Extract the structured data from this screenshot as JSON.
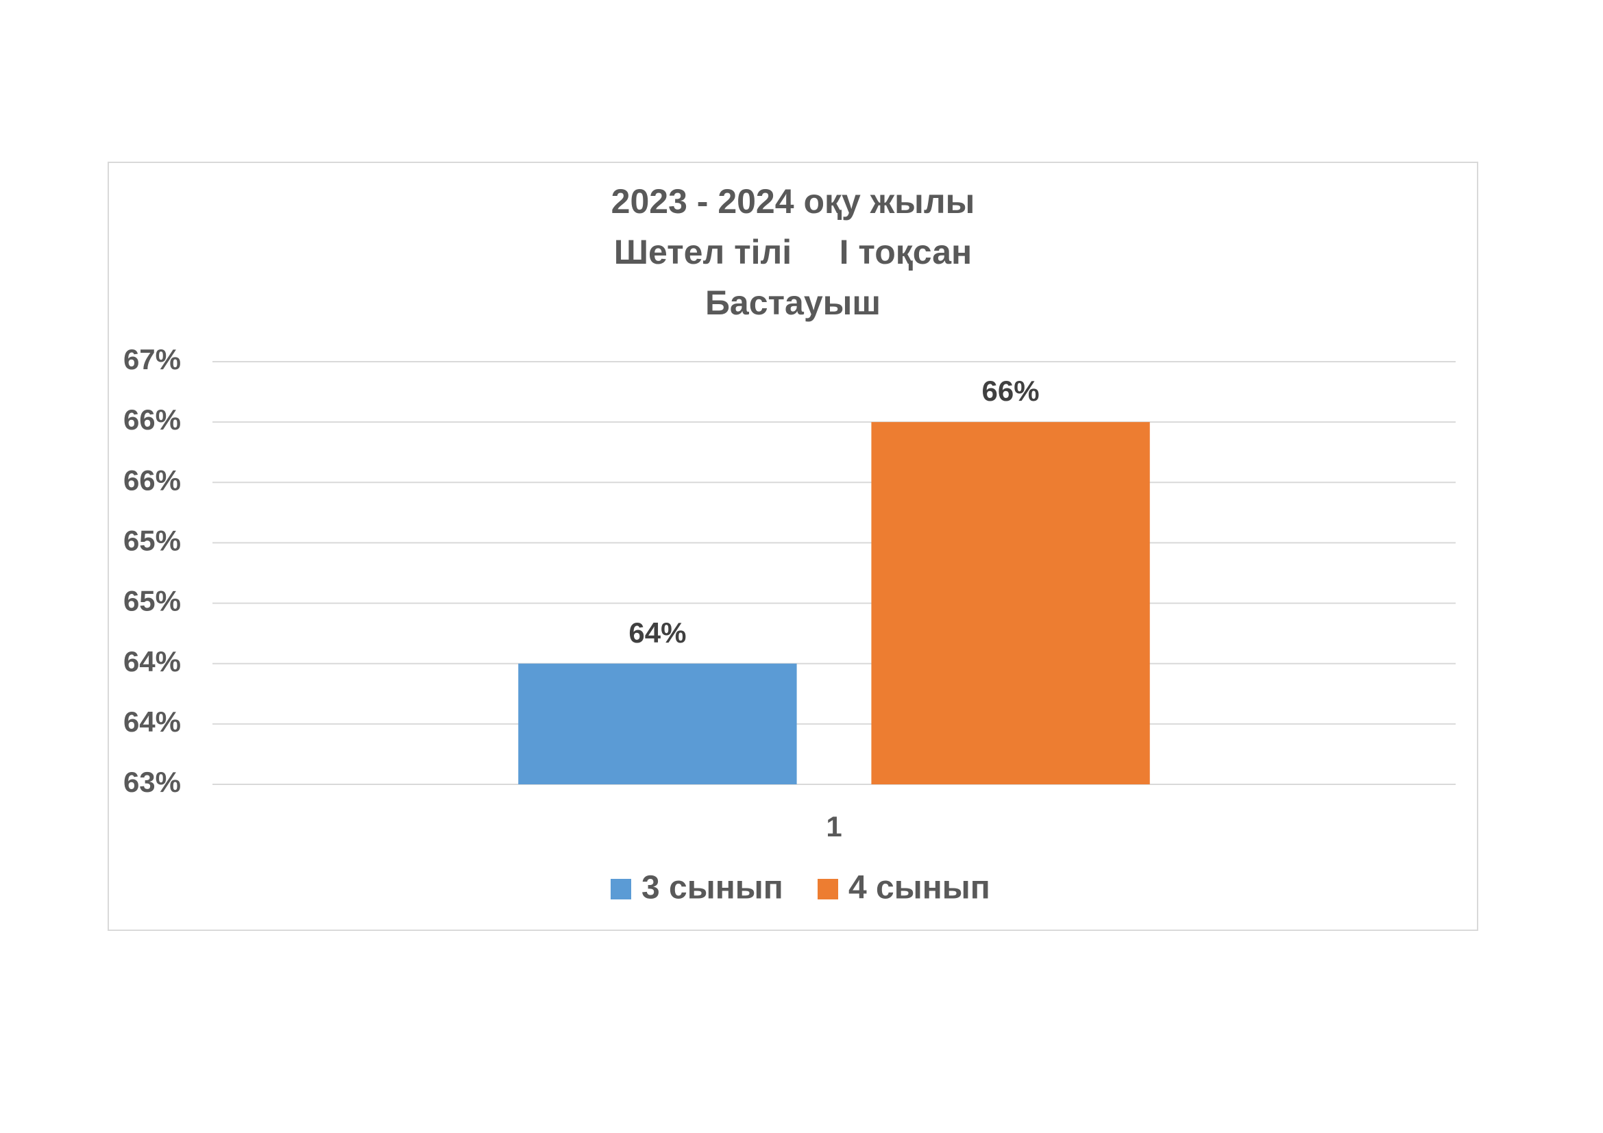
{
  "chart_data": {
    "type": "bar",
    "title": [
      "2023 - 2024 оқу жылы",
      "Шетел тілі     І тоқсан",
      "Бастауыш"
    ],
    "categories": [
      "1"
    ],
    "series": [
      {
        "name": "3 сынып",
        "color": "#5b9bd5",
        "values": [
          64
        ]
      },
      {
        "name": "4 сынып",
        "color": "#ed7d31",
        "values": [
          66
        ]
      }
    ],
    "ylim": [
      63,
      66.5
    ],
    "yticks": [
      {
        "value": 63,
        "label": "63%"
      },
      {
        "value": 63.5,
        "label": "64%"
      },
      {
        "value": 64,
        "label": "64%"
      },
      {
        "value": 64.5,
        "label": "65%"
      },
      {
        "value": 65,
        "label": "65%"
      },
      {
        "value": 65.5,
        "label": "66%"
      },
      {
        "value": 66,
        "label": "66%"
      },
      {
        "value": 66.5,
        "label": "67%"
      }
    ],
    "value_labels": [
      [
        "64%"
      ],
      [
        "66%"
      ]
    ],
    "grid": true,
    "legend": "bottom"
  }
}
